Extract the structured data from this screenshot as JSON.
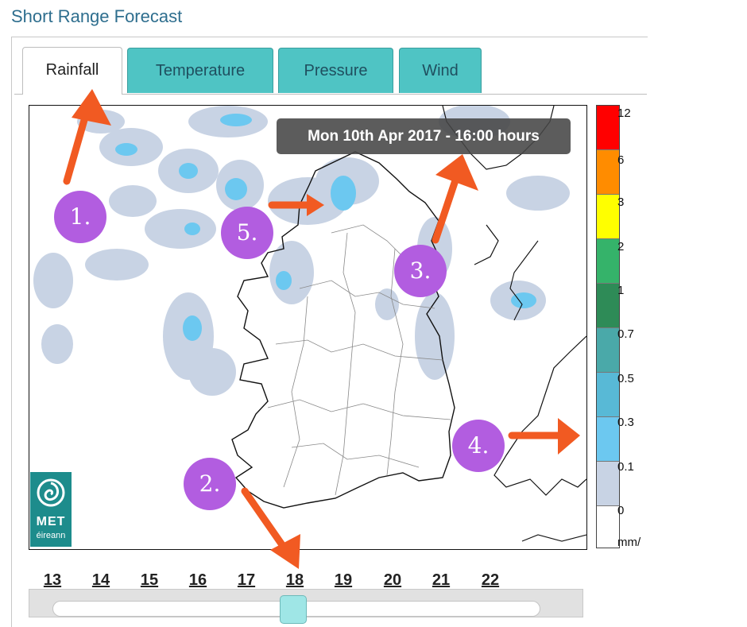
{
  "page": {
    "title": "Short Range Forecast"
  },
  "tabs": [
    {
      "label": "Rainfall",
      "active": true
    },
    {
      "label": "Temperature",
      "active": false
    },
    {
      "label": "Pressure",
      "active": false
    },
    {
      "label": "Wind",
      "active": false
    }
  ],
  "map": {
    "timestamp": "Mon 10th Apr 2017 - 16:00 hours",
    "logo": {
      "line1": "MET",
      "line2": "éireann"
    }
  },
  "legend": {
    "labels": [
      "12",
      "6",
      "3",
      "2",
      "1",
      "0.7",
      "0.5",
      "0.3",
      "0.1",
      "0",
      "mm/"
    ],
    "colors": [
      "#ff0000",
      "#ff8c00",
      "#ffff00",
      "#35b36a",
      "#2e8b57",
      "#4aa9a9",
      "#58b9d6",
      "#6cc8f0",
      "#c8d3e4",
      "#ffffff"
    ]
  },
  "slider": {
    "ticks": [
      "13",
      "14",
      "15",
      "16",
      "17",
      "18",
      "19",
      "20",
      "21",
      "22"
    ],
    "selected": "18"
  },
  "annotations": [
    "1.",
    "2.",
    "3.",
    "4.",
    "5."
  ],
  "colors": {
    "accent": "#4fc4c4",
    "arrow": "#f15a22",
    "badge": "#b25de0",
    "rain_light": "#c8d3e4",
    "rain_med": "#6cc8f0"
  }
}
